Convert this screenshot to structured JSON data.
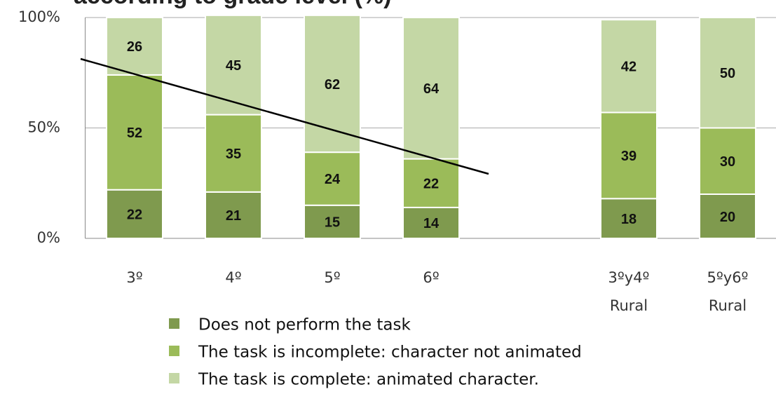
{
  "chart_data": {
    "type": "stacked_bar",
    "title": "according to grade level (%)",
    "categories": [
      "3º",
      "4º",
      "5º",
      "6º",
      null,
      "3ºy4º Rural",
      "5ºy6º Rural"
    ],
    "series": [
      {
        "name": "Does not perform the task",
        "color": "#7f9a4e",
        "values": [
          22,
          21,
          15,
          14,
          null,
          18,
          20
        ]
      },
      {
        "name": "The task is incomplete: character not animated",
        "color": "#9bbb59",
        "values": [
          52,
          35,
          24,
          22,
          null,
          39,
          30
        ]
      },
      {
        "name": "The task is complete: animated character.",
        "color": "#c4d7a5",
        "values": [
          26,
          45,
          62,
          64,
          null,
          42,
          50
        ]
      }
    ],
    "ylim": [
      0,
      100
    ],
    "yticks": [
      {
        "value": 0,
        "label": "0%"
      },
      {
        "value": 50,
        "label": "50%"
      },
      {
        "value": 100,
        "label": "100%"
      }
    ],
    "grid": true,
    "legend": "bottom"
  }
}
